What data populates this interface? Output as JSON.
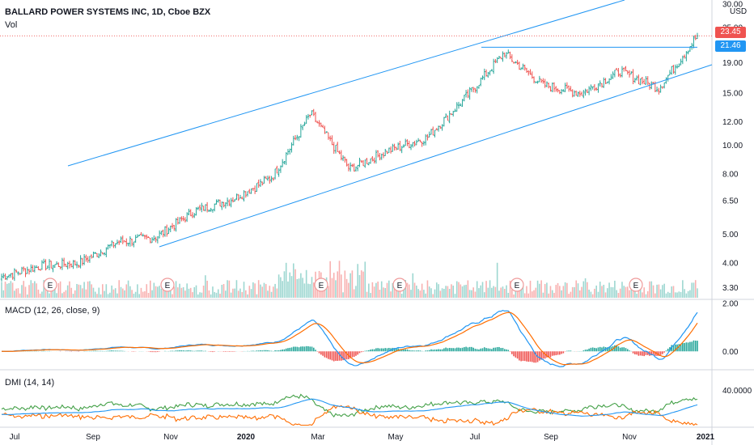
{
  "header": {
    "symbol_line": "BALLARD POWER SYSTEMS INC, 1D, Cboe BZX",
    "vol_label": "Vol"
  },
  "price_axis": {
    "currency": "USD",
    "ticks": [
      "30.00",
      "25.00",
      "19.00",
      "15.00",
      "12.00",
      "10.00",
      "8.00",
      "6.50",
      "5.00",
      "4.00",
      "3.30"
    ],
    "tick_values": [
      30,
      25,
      19,
      15,
      12,
      10,
      8,
      6.5,
      5,
      4,
      3.3
    ],
    "scale": "log",
    "range": [
      3.05,
      31
    ]
  },
  "last_price": {
    "label": "23.45",
    "value": 23.45,
    "color": "#ef5350"
  },
  "resistance": {
    "label": "21.46",
    "value": 21.46,
    "color": "#2196f3"
  },
  "macd": {
    "label": "MACD (12, 26, close, 9)",
    "ticks": [
      "2.00",
      "0.00"
    ],
    "tick_values": [
      2,
      0
    ]
  },
  "dmi": {
    "label": "DMI (14, 14)",
    "ticks": [
      "40.0000"
    ],
    "tick_values": [
      40
    ]
  },
  "x_axis": {
    "labels": [
      "Jul",
      "Sep",
      "Nov",
      "2020",
      "Mar",
      "May",
      "Jul",
      "Sep",
      "Nov",
      "2021"
    ],
    "bold": [
      false,
      false,
      false,
      true,
      false,
      false,
      false,
      false,
      false,
      true
    ]
  },
  "earnings_markers": [
    "E",
    "E",
    "E",
    "E",
    "E",
    "E"
  ],
  "colors": {
    "up": "#26a69a",
    "down": "#ef5350",
    "channel": "#2196f3",
    "macd_line": "#2196f3",
    "signal_line": "#ff6d00",
    "dmi_plus": "#43a047",
    "dmi_minus": "#ff6d00",
    "adx": "#2196f3"
  },
  "chart_data": {
    "type": "candlestick",
    "title": "BALLARD POWER SYSTEMS INC, 1D, Cboe BZX",
    "yscale": "log",
    "ylim": [
      3.05,
      31
    ],
    "price_path": {
      "x": [
        "Jun 2019",
        "Jul 2019",
        "Aug 2019",
        "Sep 2019",
        "Oct 2019",
        "Nov 2019",
        "Dec 2019",
        "Jan 2020",
        "Feb 2020",
        "Mar 2020",
        "Apr 2020",
        "May 2020",
        "Jun 2020",
        "Jul 2020",
        "Aug 2020",
        "Sep 2020",
        "Oct 2020",
        "Nov 2020",
        "Dec 2020"
      ],
      "y": [
        3.6,
        3.9,
        4.0,
        4.7,
        4.9,
        6.0,
        6.6,
        7.8,
        12.8,
        8.3,
        9.6,
        10.6,
        14.5,
        20.5,
        16.0,
        15.0,
        17.8,
        15.6,
        23.45
      ]
    },
    "series": [
      {
        "name": "MACD (12, 26, close, 9)",
        "range": [
          -0.7,
          2.1
        ]
      },
      {
        "name": "DMI (14, 14)",
        "range": [
          10,
          55
        ]
      }
    ]
  }
}
